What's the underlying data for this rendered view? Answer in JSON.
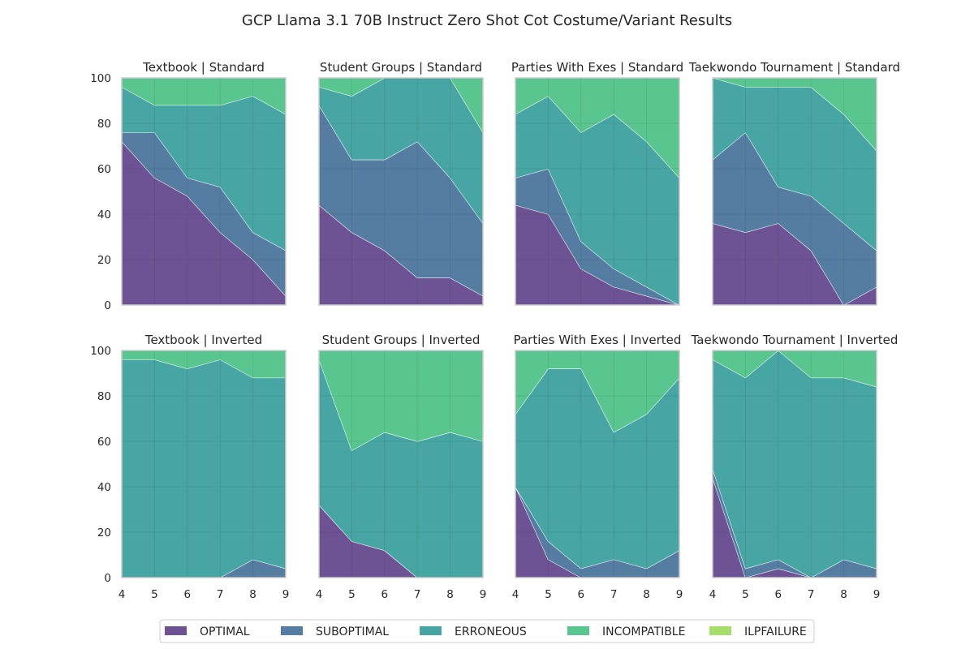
{
  "chart_data": {
    "type": "area",
    "stacked": true,
    "title": "GCP Llama 3.1 70B Instruct Zero Shot Cot Costume/Variant Results",
    "x": [
      4,
      5,
      6,
      7,
      8,
      9
    ],
    "ylim": [
      0,
      100
    ],
    "yticks": [
      0,
      20,
      40,
      60,
      80,
      100
    ],
    "series_names": [
      "OPTIMAL",
      "SUBOPTIMAL",
      "ERRONEOUS",
      "INCOMPATIBLE",
      "ILPFAILURE"
    ],
    "colors": {
      "OPTIMAL": "#482878",
      "SUBOPTIMAL": "#2a5d8a",
      "ERRONEOUS": "#19908c",
      "INCOMPATIBLE": "#2fb873",
      "ILPFAILURE": "#8fd744"
    },
    "legend_position": "bottom-center",
    "panels": [
      {
        "title": "Textbook | Standard",
        "series": {
          "OPTIMAL": [
            72,
            56,
            48,
            32,
            20,
            4
          ],
          "SUBOPTIMAL": [
            4,
            20,
            8,
            20,
            12,
            20
          ],
          "ERRONEOUS": [
            20,
            12,
            32,
            36,
            60,
            60
          ],
          "INCOMPATIBLE": [
            4,
            12,
            12,
            12,
            8,
            16
          ],
          "ILPFAILURE": [
            0,
            0,
            0,
            0,
            0,
            0
          ]
        }
      },
      {
        "title": "Student Groups | Standard",
        "series": {
          "OPTIMAL": [
            44,
            32,
            24,
            12,
            12,
            4
          ],
          "SUBOPTIMAL": [
            44,
            32,
            40,
            60,
            44,
            32
          ],
          "ERRONEOUS": [
            8,
            28,
            36,
            28,
            44,
            40
          ],
          "INCOMPATIBLE": [
            4,
            8,
            0,
            0,
            0,
            24
          ],
          "ILPFAILURE": [
            0,
            0,
            0,
            0,
            0,
            0
          ]
        }
      },
      {
        "title": "Parties With Exes | Standard",
        "series": {
          "OPTIMAL": [
            44,
            40,
            16,
            8,
            4,
            0
          ],
          "SUBOPTIMAL": [
            12,
            20,
            12,
            8,
            4,
            0
          ],
          "ERRONEOUS": [
            28,
            32,
            48,
            68,
            64,
            56
          ],
          "INCOMPATIBLE": [
            16,
            8,
            24,
            16,
            28,
            44
          ],
          "ILPFAILURE": [
            0,
            0,
            0,
            0,
            0,
            0
          ]
        }
      },
      {
        "title": "Taekwondo Tournament | Standard",
        "series": {
          "OPTIMAL": [
            36,
            32,
            36,
            24,
            0,
            8
          ],
          "SUBOPTIMAL": [
            28,
            44,
            16,
            24,
            36,
            16
          ],
          "ERRONEOUS": [
            36,
            20,
            44,
            48,
            48,
            44
          ],
          "INCOMPATIBLE": [
            0,
            4,
            4,
            4,
            16,
            32
          ],
          "ILPFAILURE": [
            0,
            0,
            0,
            0,
            0,
            0
          ]
        }
      },
      {
        "title": "Textbook | Inverted",
        "series": {
          "OPTIMAL": [
            0,
            0,
            0,
            0,
            0,
            0
          ],
          "SUBOPTIMAL": [
            0,
            0,
            0,
            0,
            8,
            4
          ],
          "ERRONEOUS": [
            96,
            96,
            92,
            96,
            80,
            84
          ],
          "INCOMPATIBLE": [
            4,
            4,
            8,
            4,
            12,
            12
          ],
          "ILPFAILURE": [
            0,
            0,
            0,
            0,
            0,
            0
          ]
        }
      },
      {
        "title": "Student Groups | Inverted",
        "series": {
          "OPTIMAL": [
            32,
            16,
            12,
            0,
            0,
            0
          ],
          "SUBOPTIMAL": [
            0,
            0,
            0,
            0,
            0,
            0
          ],
          "ERRONEOUS": [
            64,
            40,
            52,
            60,
            64,
            60
          ],
          "INCOMPATIBLE": [
            4,
            44,
            36,
            40,
            36,
            40
          ],
          "ILPFAILURE": [
            0,
            0,
            0,
            0,
            0,
            0
          ]
        }
      },
      {
        "title": "Parties With Exes | Inverted",
        "series": {
          "OPTIMAL": [
            40,
            8,
            0,
            0,
            0,
            0
          ],
          "SUBOPTIMAL": [
            0,
            8,
            4,
            8,
            4,
            12
          ],
          "ERRONEOUS": [
            32,
            76,
            88,
            56,
            68,
            76
          ],
          "INCOMPATIBLE": [
            28,
            8,
            8,
            36,
            28,
            12
          ],
          "ILPFAILURE": [
            0,
            0,
            0,
            0,
            0,
            0
          ]
        }
      },
      {
        "title": "Taekwondo Tournament | Inverted",
        "series": {
          "OPTIMAL": [
            44,
            0,
            4,
            0,
            0,
            0
          ],
          "SUBOPTIMAL": [
            4,
            4,
            4,
            0,
            8,
            4
          ],
          "ERRONEOUS": [
            48,
            84,
            92,
            88,
            80,
            80
          ],
          "INCOMPATIBLE": [
            4,
            12,
            0,
            12,
            12,
            16
          ],
          "ILPFAILURE": [
            0,
            0,
            0,
            0,
            0,
            0
          ]
        }
      }
    ]
  }
}
